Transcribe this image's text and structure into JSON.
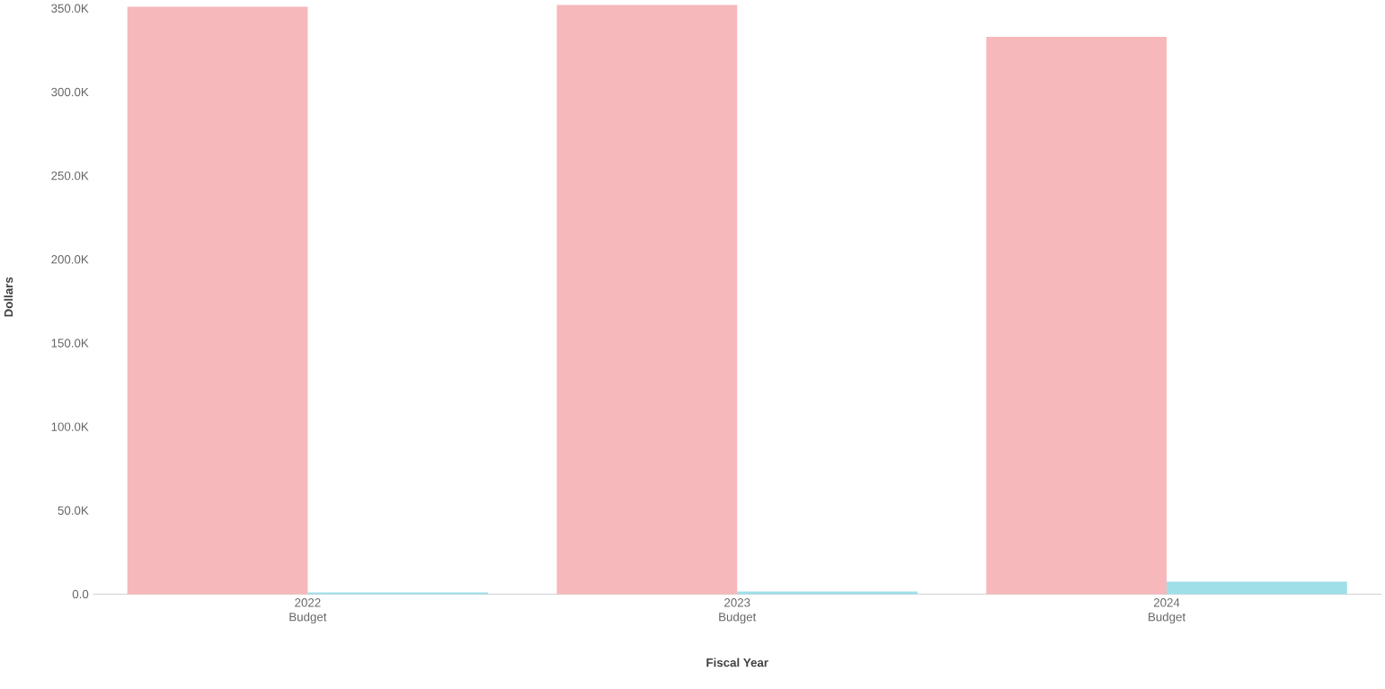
{
  "chart_data": {
    "type": "bar",
    "xlabel": "Fiscal Year",
    "ylabel": "Dollars",
    "categories": [
      "2022 Budget",
      "2023 Budget",
      "2024 Budget"
    ],
    "series": [
      {
        "color": "#f7b8bb",
        "values": [
          351000,
          352000,
          333000
        ]
      },
      {
        "color": "#9fdfe8",
        "values": [
          1000,
          1500,
          7500
        ]
      }
    ],
    "ylim": [
      0,
      355000
    ],
    "yticks": [
      {
        "value": 0,
        "label": "0.0"
      },
      {
        "value": 50000,
        "label": "50.0K"
      },
      {
        "value": 100000,
        "label": "100.0K"
      },
      {
        "value": 150000,
        "label": "150.0K"
      },
      {
        "value": 200000,
        "label": "200.0K"
      },
      {
        "value": 250000,
        "label": "250.0K"
      },
      {
        "value": 300000,
        "label": "300.0K"
      },
      {
        "value": 350000,
        "label": "350.0K"
      }
    ]
  }
}
